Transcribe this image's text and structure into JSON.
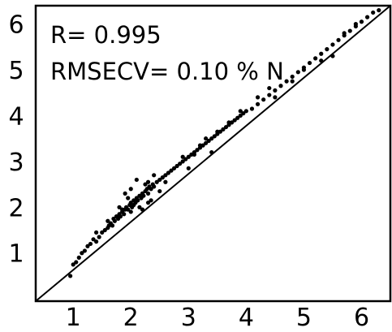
{
  "chart_data": {
    "type": "scatter",
    "title": "",
    "xlabel": "",
    "ylabel": "",
    "xlim": [
      0.35,
      6.5
    ],
    "ylim": [
      -0.05,
      6.4
    ],
    "xticks": [
      "1",
      "2",
      "3",
      "4",
      "5",
      "6"
    ],
    "yticks": [
      "1",
      "2",
      "3",
      "4",
      "5",
      "6"
    ],
    "grid": false,
    "annotations": [
      "R= 0.995",
      "RMSECV= 0.10 % N"
    ],
    "reference_line": {
      "x": [
        0.35,
        6.5
      ],
      "y": [
        -0.05,
        6.4
      ]
    },
    "colors": {
      "points": "#000000",
      "line": "#000000",
      "axes": "#000000"
    },
    "series": [
      {
        "x": [
          0.95,
          1.0,
          1.05,
          1.1,
          1.15,
          1.2,
          1.25,
          1.3,
          1.35,
          1.4,
          1.45,
          1.5,
          1.55,
          1.6,
          1.62,
          1.65,
          1.68,
          1.7,
          1.72,
          1.75,
          1.78,
          1.8,
          1.82,
          1.85,
          1.88,
          1.9,
          1.92,
          1.95,
          1.98,
          2.0,
          2.02,
          2.05,
          2.08,
          2.1,
          2.12,
          2.15,
          2.18,
          2.2,
          2.22,
          2.25,
          2.28,
          2.3,
          2.32,
          2.35,
          2.38,
          2.4,
          2.45,
          2.5,
          2.55,
          2.6,
          2.65,
          2.7,
          2.75,
          2.8,
          2.85,
          2.9,
          2.95,
          3.0,
          3.05,
          3.1,
          3.15,
          3.2,
          3.25,
          3.3,
          3.35,
          3.4,
          3.45,
          3.5,
          3.55,
          3.6,
          3.65,
          3.7,
          3.75,
          3.8,
          3.85,
          3.9,
          3.95,
          4.0,
          4.1,
          4.2,
          4.3,
          4.4,
          4.5,
          4.6,
          4.7,
          4.8,
          4.9,
          5.0,
          5.1,
          5.2,
          5.3,
          5.4,
          5.5,
          5.6,
          5.7,
          5.8,
          5.9,
          6.0,
          6.1,
          6.2,
          6.3,
          2.0,
          2.1,
          2.2,
          2.3,
          2.4,
          1.9,
          1.8,
          2.5,
          2.6,
          3.0,
          3.2,
          3.4,
          2.9,
          3.1,
          3.3,
          3.5,
          3.7,
          2.0,
          2.15,
          2.25,
          2.35,
          1.85,
          1.95,
          2.05,
          4.2,
          4.5,
          4.8,
          5.3,
          5.7,
          5.9,
          4.4,
          3.9,
          5.5,
          5.0,
          2.3,
          1.6,
          1.4
        ],
        "y": [
          0.5,
          0.75,
          0.8,
          0.9,
          1.0,
          1.05,
          1.15,
          1.2,
          1.3,
          1.25,
          1.35,
          1.45,
          1.5,
          1.55,
          1.6,
          1.65,
          1.6,
          1.75,
          1.7,
          1.8,
          1.75,
          1.85,
          1.8,
          1.9,
          1.85,
          1.95,
          2.0,
          1.95,
          2.05,
          2.1,
          2.0,
          2.15,
          2.1,
          2.2,
          2.15,
          2.25,
          2.2,
          2.3,
          2.25,
          2.35,
          2.4,
          2.3,
          2.45,
          2.4,
          2.5,
          2.45,
          2.55,
          2.6,
          2.65,
          2.7,
          2.75,
          2.8,
          2.85,
          2.9,
          2.95,
          3.0,
          3.05,
          3.1,
          3.15,
          3.2,
          3.25,
          3.3,
          3.35,
          3.4,
          3.45,
          3.5,
          3.55,
          3.6,
          3.65,
          3.7,
          3.75,
          3.8,
          3.85,
          3.9,
          3.95,
          4.0,
          4.05,
          4.1,
          4.15,
          4.25,
          4.35,
          4.45,
          4.55,
          4.65,
          4.75,
          4.85,
          4.95,
          5.05,
          5.15,
          5.25,
          5.35,
          5.45,
          5.55,
          5.65,
          5.75,
          5.85,
          5.95,
          6.05,
          6.15,
          6.25,
          6.3,
          2.4,
          2.6,
          1.95,
          2.1,
          2.7,
          2.3,
          2.0,
          2.35,
          2.55,
          2.85,
          3.35,
          3.2,
          3.1,
          3.15,
          3.5,
          3.65,
          3.85,
          1.9,
          2.0,
          2.5,
          2.15,
          1.95,
          2.2,
          2.05,
          4.4,
          4.4,
          4.75,
          5.2,
          5.8,
          6.0,
          4.6,
          4.1,
          5.3,
          5.0,
          2.55,
          1.7,
          1.45
        ]
      }
    ]
  }
}
